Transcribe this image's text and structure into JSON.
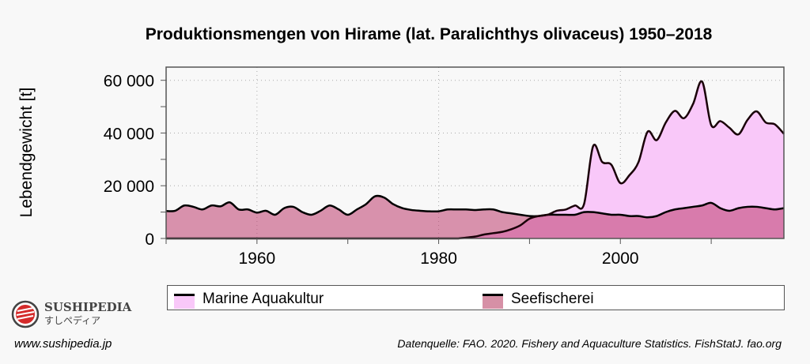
{
  "chart_data": {
    "type": "area",
    "title": "Produktionsmengen von Hirame (lat. Paralichthys olivaceus) 1950–2018",
    "xlabel": "",
    "ylabel": "Lebendgewicht [t]",
    "xlim": [
      1950,
      2018
    ],
    "ylim": [
      0,
      65000
    ],
    "xticks": [
      1960,
      1980,
      2000
    ],
    "yticks": [
      0,
      20000,
      40000,
      60000
    ],
    "ytick_labels": [
      "0",
      "20 000",
      "40 000",
      "60 000"
    ],
    "grid": true,
    "legend_placement": "bottom",
    "x": [
      1950,
      1951,
      1952,
      1953,
      1954,
      1955,
      1956,
      1957,
      1958,
      1959,
      1960,
      1961,
      1962,
      1963,
      1964,
      1965,
      1966,
      1967,
      1968,
      1969,
      1970,
      1971,
      1972,
      1973,
      1974,
      1975,
      1976,
      1977,
      1978,
      1979,
      1980,
      1981,
      1982,
      1983,
      1984,
      1985,
      1986,
      1987,
      1988,
      1989,
      1990,
      1991,
      1992,
      1993,
      1994,
      1995,
      1996,
      1997,
      1998,
      1999,
      2000,
      2001,
      2002,
      2003,
      2004,
      2005,
      2006,
      2007,
      2008,
      2009,
      2010,
      2011,
      2012,
      2013,
      2014,
      2015,
      2016,
      2017,
      2018
    ],
    "series": [
      {
        "name": "Marine Aquakultur",
        "color": "#f9c8f9",
        "values": [
          0,
          0,
          0,
          0,
          0,
          0,
          0,
          0,
          0,
          0,
          0,
          0,
          0,
          0,
          0,
          0,
          0,
          0,
          0,
          0,
          0,
          0,
          0,
          0,
          0,
          0,
          0,
          0,
          0,
          0,
          0,
          0,
          0,
          300,
          700,
          1500,
          2000,
          2500,
          3500,
          5000,
          7500,
          8500,
          9000,
          10500,
          11000,
          12500,
          13000,
          35000,
          29000,
          28000,
          21000,
          24000,
          29000,
          40500,
          37300,
          44000,
          48400,
          45600,
          51000,
          59500,
          43000,
          44500,
          42000,
          39500,
          45000,
          48200,
          44000,
          43300,
          39700
        ]
      },
      {
        "name": "Seefischerei",
        "color": "#d690a6",
        "values": [
          10400,
          10500,
          12500,
          12000,
          11000,
          12500,
          12200,
          13700,
          11000,
          11000,
          9800,
          10500,
          9000,
          11500,
          12000,
          10000,
          9000,
          10500,
          12500,
          11000,
          9000,
          11000,
          13000,
          16000,
          15500,
          13000,
          11500,
          10800,
          10500,
          10300,
          10300,
          11000,
          11000,
          11000,
          10800,
          11000,
          11000,
          10000,
          9500,
          9000,
          8500,
          8500,
          9000,
          9000,
          9000,
          9000,
          10000,
          10000,
          9500,
          9000,
          9000,
          8500,
          8500,
          8000,
          8500,
          10000,
          11000,
          11500,
          12000,
          12500,
          13500,
          11500,
          10500,
          11500,
          12000,
          12000,
          11500,
          11000,
          11500
        ]
      }
    ]
  },
  "footer": {
    "brand": "SUSHIPEDIA",
    "brand_jp": "すしペディア",
    "url": "www.sushipedia.jp",
    "source": "Datenquelle: FAO. 2020. Fishery and Aquaculture Statistics. FishStatJ. fao.org"
  }
}
